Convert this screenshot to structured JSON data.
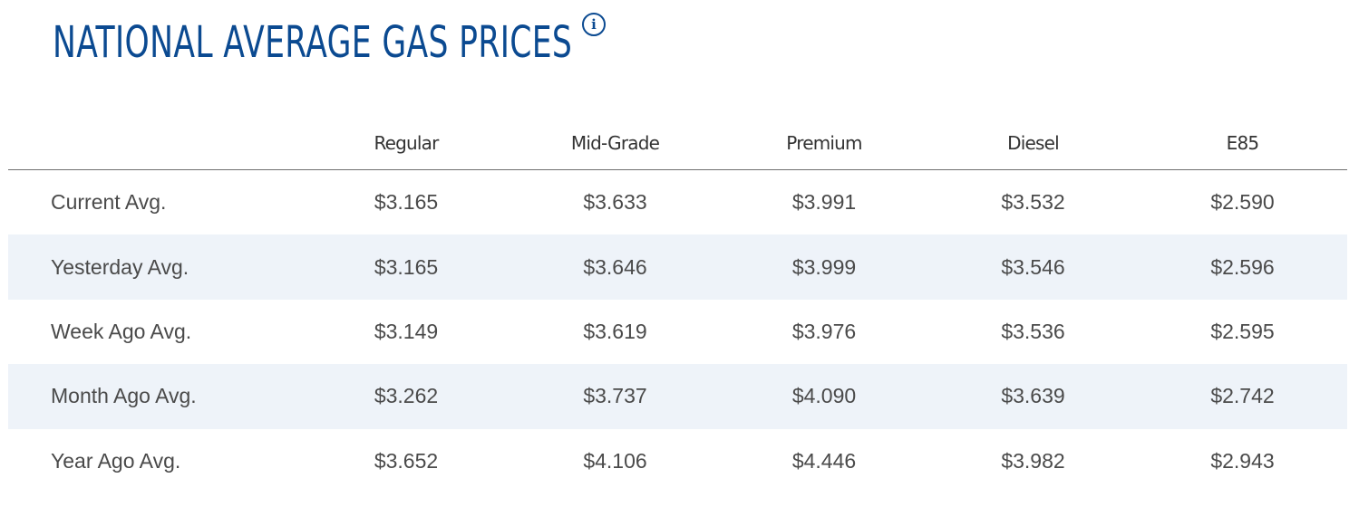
{
  "header": {
    "title": "NATIONAL AVERAGE GAS PRICES",
    "info_icon": "info-circle-icon"
  },
  "table": {
    "columns": [
      "",
      "Regular",
      "Mid-Grade",
      "Premium",
      "Diesel",
      "E85"
    ],
    "rows": [
      {
        "label": "Current Avg.",
        "values": [
          "$3.165",
          "$3.633",
          "$3.991",
          "$3.532",
          "$2.590"
        ]
      },
      {
        "label": "Yesterday Avg.",
        "values": [
          "$3.165",
          "$3.646",
          "$3.999",
          "$3.546",
          "$2.596"
        ]
      },
      {
        "label": "Week Ago Avg.",
        "values": [
          "$3.149",
          "$3.619",
          "$3.976",
          "$3.536",
          "$2.595"
        ]
      },
      {
        "label": "Month Ago Avg.",
        "values": [
          "$3.262",
          "$3.737",
          "$4.090",
          "$3.639",
          "$2.742"
        ]
      },
      {
        "label": "Year Ago Avg.",
        "values": [
          "$3.652",
          "$4.106",
          "$4.446",
          "$3.982",
          "$2.943"
        ]
      }
    ]
  },
  "colors": {
    "title": "#0b4a91",
    "text": "#4a4a4a",
    "header_text": "#333333",
    "row_shade": "#eef3f9",
    "divider": "#6f6f6f"
  }
}
